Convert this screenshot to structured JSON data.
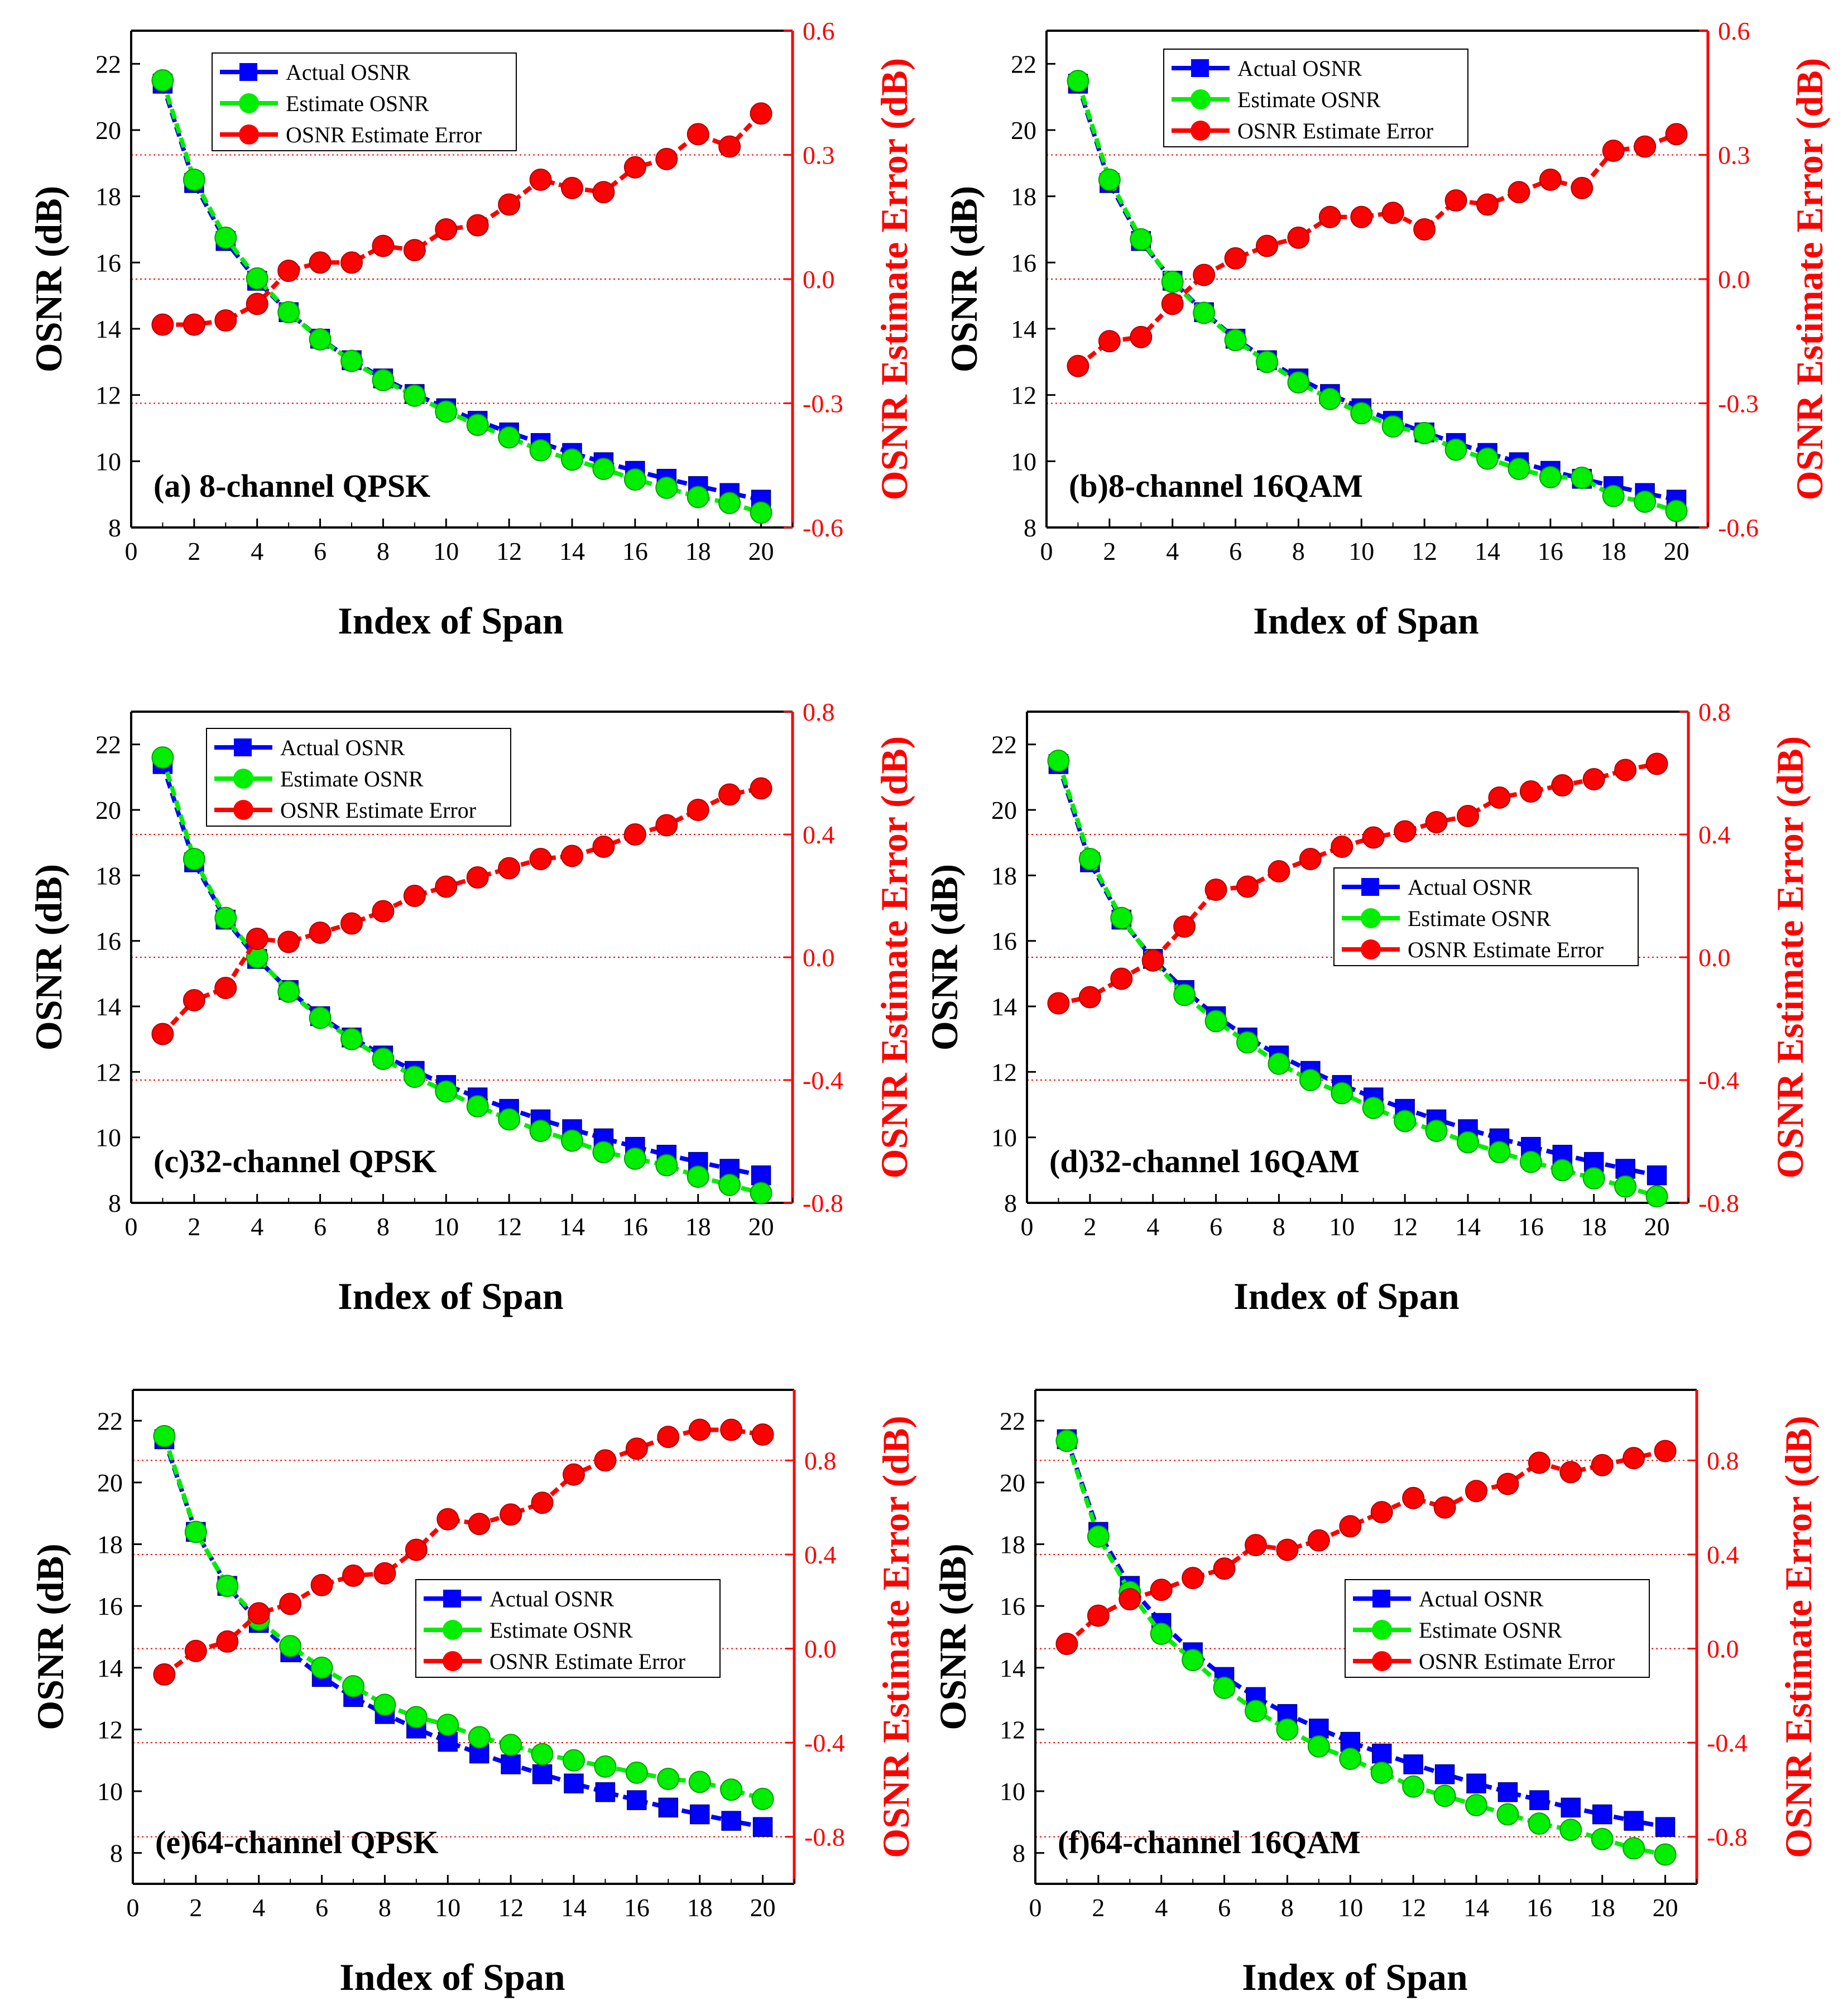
{
  "chart_data": [
    {
      "type": "line",
      "panel_label": "(a) 8-channel QPSK",
      "xlabel": "Index of Span",
      "ylabel": "OSNR (dB)",
      "y2label": "OSNR Estimate Error (dB)",
      "xlim": [
        0,
        21
      ],
      "ylim": [
        8,
        23
      ],
      "y2lim": [
        -0.6,
        0.6
      ],
      "xticks": [
        "0",
        "2",
        "4",
        "6",
        "8",
        "10",
        "12",
        "14",
        "16",
        "18",
        "20"
      ],
      "yticks": [
        "8",
        "10",
        "12",
        "14",
        "16",
        "18",
        "20",
        "22"
      ],
      "y2ticks": [
        "-0.6",
        "-0.3",
        "0.0",
        "0.3",
        "0.6"
      ],
      "gridlines_y2": [
        -0.3,
        0.0,
        0.3
      ],
      "legend_position": "top-left",
      "x": [
        1,
        2,
        3,
        4,
        5,
        6,
        7,
        8,
        9,
        10,
        11,
        12,
        13,
        14,
        15,
        16,
        17,
        18,
        19,
        20
      ],
      "series": [
        {
          "name": "Actual OSNR",
          "axis": "left",
          "color": "#0000ff",
          "marker": "square",
          "values": [
            21.4,
            18.4,
            16.65,
            15.45,
            14.5,
            13.7,
            13.05,
            12.5,
            12.03,
            11.6,
            11.22,
            10.87,
            10.55,
            10.25,
            9.97,
            9.71,
            9.47,
            9.25,
            9.04,
            8.84
          ]
        },
        {
          "name": "Estimate OSNR",
          "axis": "left",
          "color": "#00ee00",
          "marker": "circle",
          "values": [
            21.5,
            18.5,
            16.75,
            15.52,
            14.5,
            13.68,
            13.03,
            12.45,
            11.98,
            11.5,
            11.1,
            10.72,
            10.33,
            10.05,
            9.77,
            9.45,
            9.2,
            8.92,
            8.74,
            8.45
          ]
        },
        {
          "name": "OSNR Estimate Error",
          "axis": "right",
          "color": "#ff0000",
          "marker": "circle",
          "values": [
            -0.11,
            -0.11,
            -0.1,
            -0.06,
            0.02,
            0.04,
            0.04,
            0.08,
            0.07,
            0.12,
            0.13,
            0.18,
            0.24,
            0.22,
            0.21,
            0.27,
            0.29,
            0.35,
            0.32,
            0.4
          ]
        }
      ]
    },
    {
      "type": "line",
      "panel_label": "(b)8-channel 16QAM",
      "xlabel": "Index of Span",
      "ylabel": "OSNR (dB)",
      "y2label": "OSNR Estimate Error (dB)",
      "xlim": [
        0,
        21
      ],
      "ylim": [
        8,
        23
      ],
      "y2lim": [
        -0.6,
        0.6
      ],
      "xticks": [
        "0",
        "2",
        "4",
        "6",
        "8",
        "10",
        "12",
        "14",
        "16",
        "18",
        "20"
      ],
      "yticks": [
        "8",
        "10",
        "12",
        "14",
        "16",
        "18",
        "20",
        "22"
      ],
      "y2ticks": [
        "-0.6",
        "-0.3",
        "0.0",
        "0.3",
        "0.6"
      ],
      "gridlines_y2": [
        -0.3,
        0.0,
        0.3
      ],
      "legend_position": "top-left",
      "x": [
        1,
        2,
        3,
        4,
        5,
        6,
        7,
        8,
        9,
        10,
        11,
        12,
        13,
        14,
        15,
        16,
        17,
        18,
        19,
        20
      ],
      "series": [
        {
          "name": "Actual OSNR",
          "axis": "left",
          "color": "#0000ff",
          "marker": "square",
          "values": [
            21.4,
            18.4,
            16.65,
            15.45,
            14.5,
            13.7,
            13.05,
            12.5,
            12.03,
            11.6,
            11.22,
            10.87,
            10.55,
            10.25,
            9.97,
            9.71,
            9.47,
            9.25,
            9.04,
            8.84
          ]
        },
        {
          "name": "Estimate OSNR",
          "axis": "left",
          "color": "#00ee00",
          "marker": "circle",
          "values": [
            21.48,
            18.5,
            16.7,
            15.42,
            14.48,
            13.66,
            13.0,
            12.38,
            11.88,
            11.45,
            11.05,
            10.85,
            10.35,
            10.08,
            9.77,
            9.52,
            9.5,
            8.95,
            8.78,
            8.5
          ]
        },
        {
          "name": "OSNR Estimate Error",
          "axis": "right",
          "color": "#ff0000",
          "marker": "circle",
          "values": [
            -0.21,
            -0.15,
            -0.14,
            -0.06,
            0.01,
            0.05,
            0.08,
            0.1,
            0.15,
            0.15,
            0.16,
            0.12,
            0.19,
            0.18,
            0.21,
            0.24,
            0.22,
            0.31,
            0.32,
            0.35
          ]
        }
      ]
    },
    {
      "type": "line",
      "panel_label": "(c)32-channel QPSK",
      "xlabel": "Index of Span",
      "ylabel": "OSNR (dB)",
      "y2label": "OSNR Estimate Error (dB)",
      "xlim": [
        0,
        21
      ],
      "ylim": [
        8,
        23
      ],
      "y2lim": [
        -0.8,
        0.8
      ],
      "xticks": [
        "0",
        "2",
        "4",
        "6",
        "8",
        "10",
        "12",
        "14",
        "16",
        "18",
        "20"
      ],
      "yticks": [
        "8",
        "10",
        "12",
        "14",
        "16",
        "18",
        "20",
        "22"
      ],
      "y2ticks": [
        "-0.8",
        "-0.4",
        "0.0",
        "0.4",
        "0.8"
      ],
      "gridlines_y2": [
        -0.4,
        0.0,
        0.4
      ],
      "legend_position": "top-left",
      "x": [
        1,
        2,
        3,
        4,
        5,
        6,
        7,
        8,
        9,
        10,
        11,
        12,
        13,
        14,
        15,
        16,
        17,
        18,
        19,
        20
      ],
      "series": [
        {
          "name": "Actual OSNR",
          "axis": "left",
          "color": "#0000ff",
          "marker": "square",
          "values": [
            21.4,
            18.4,
            16.65,
            15.45,
            14.5,
            13.7,
            13.05,
            12.5,
            12.03,
            11.6,
            11.22,
            10.87,
            10.55,
            10.25,
            9.97,
            9.71,
            9.47,
            9.25,
            9.04,
            8.84
          ]
        },
        {
          "name": "Estimate OSNR",
          "axis": "left",
          "color": "#00ee00",
          "marker": "circle",
          "values": [
            21.6,
            18.5,
            16.7,
            15.5,
            14.45,
            13.65,
            13.0,
            12.4,
            11.85,
            11.4,
            10.95,
            10.55,
            10.2,
            9.9,
            9.55,
            9.35,
            9.15,
            8.8,
            8.55,
            8.3
          ]
        },
        {
          "name": "OSNR Estimate Error",
          "axis": "right",
          "color": "#ff0000",
          "marker": "circle",
          "values": [
            -0.25,
            -0.14,
            -0.1,
            0.06,
            0.05,
            0.08,
            0.11,
            0.15,
            0.2,
            0.23,
            0.26,
            0.29,
            0.32,
            0.33,
            0.36,
            0.4,
            0.43,
            0.48,
            0.53,
            0.55
          ]
        }
      ]
    },
    {
      "type": "line",
      "panel_label": "(d)32-channel 16QAM",
      "xlabel": "Index of Span",
      "ylabel": "OSNR (dB)",
      "y2label": "OSNR Estimate Error (dB)",
      "xlim": [
        0,
        21
      ],
      "ylim": [
        8,
        23
      ],
      "y2lim": [
        -0.8,
        0.8
      ],
      "xticks": [
        "0",
        "2",
        "4",
        "6",
        "8",
        "10",
        "12",
        "14",
        "16",
        "18",
        "20"
      ],
      "yticks": [
        "8",
        "10",
        "12",
        "14",
        "16",
        "18",
        "20",
        "22"
      ],
      "y2ticks": [
        "-0.8",
        "-0.4",
        "0.0",
        "0.4",
        "0.8"
      ],
      "gridlines_y2": [
        -0.4,
        0.0,
        0.4
      ],
      "legend_position": "center-right",
      "x": [
        1,
        2,
        3,
        4,
        5,
        6,
        7,
        8,
        9,
        10,
        11,
        12,
        13,
        14,
        15,
        16,
        17,
        18,
        19,
        20
      ],
      "series": [
        {
          "name": "Actual OSNR",
          "axis": "left",
          "color": "#0000ff",
          "marker": "square",
          "values": [
            21.4,
            18.4,
            16.65,
            15.45,
            14.5,
            13.7,
            13.05,
            12.5,
            12.03,
            11.6,
            11.22,
            10.87,
            10.55,
            10.25,
            9.97,
            9.71,
            9.47,
            9.25,
            9.04,
            8.84
          ]
        },
        {
          "name": "Estimate OSNR",
          "axis": "left",
          "color": "#00ee00",
          "marker": "circle",
          "values": [
            21.5,
            18.5,
            16.7,
            15.4,
            14.35,
            13.55,
            12.9,
            12.25,
            11.75,
            11.35,
            10.9,
            10.5,
            10.2,
            9.85,
            9.55,
            9.25,
            9.0,
            8.75,
            8.5,
            8.2
          ]
        },
        {
          "name": "OSNR Estimate Error",
          "axis": "right",
          "color": "#ff0000",
          "marker": "circle",
          "values": [
            -0.15,
            -0.13,
            -0.07,
            -0.01,
            0.1,
            0.22,
            0.23,
            0.28,
            0.32,
            0.36,
            0.39,
            0.41,
            0.44,
            0.46,
            0.52,
            0.54,
            0.56,
            0.58,
            0.61,
            0.63
          ]
        }
      ]
    },
    {
      "type": "line",
      "panel_label": "(e)64-channel QPSK",
      "xlabel": "Index of Span",
      "ylabel": "OSNR (dB)",
      "y2label": "OSNR Estimate Error (dB)",
      "xlim": [
        0,
        21
      ],
      "ylim": [
        7,
        23
      ],
      "y2lim": [
        -1.0,
        1.1
      ],
      "xticks": [
        "0",
        "2",
        "4",
        "6",
        "8",
        "10",
        "12",
        "14",
        "16",
        "18",
        "20"
      ],
      "yticks": [
        "8",
        "10",
        "12",
        "14",
        "16",
        "18",
        "20",
        "22"
      ],
      "y2ticks": [
        "-0.8",
        "-0.4",
        "0.0",
        "0.4",
        "0.8"
      ],
      "gridlines_y2": [
        -0.8,
        -0.4,
        0.0,
        0.4,
        0.8
      ],
      "legend_position": "center-right",
      "x": [
        1,
        2,
        3,
        4,
        5,
        6,
        7,
        8,
        9,
        10,
        11,
        12,
        13,
        14,
        15,
        16,
        17,
        18,
        19,
        20
      ],
      "series": [
        {
          "name": "Actual OSNR",
          "axis": "left",
          "color": "#0000ff",
          "marker": "square",
          "values": [
            21.4,
            18.4,
            16.65,
            15.45,
            14.5,
            13.7,
            13.05,
            12.5,
            12.03,
            11.6,
            11.22,
            10.87,
            10.55,
            10.25,
            9.97,
            9.71,
            9.47,
            9.25,
            9.04,
            8.84
          ]
        },
        {
          "name": "Estimate OSNR",
          "axis": "left",
          "color": "#00ee00",
          "marker": "circle",
          "values": [
            21.5,
            18.4,
            16.65,
            15.55,
            14.7,
            14.0,
            13.4,
            12.8,
            12.4,
            12.15,
            11.75,
            11.5,
            11.2,
            11.0,
            10.8,
            10.6,
            10.4,
            10.3,
            10.05,
            9.75
          ]
        },
        {
          "name": "OSNR Estimate Error",
          "axis": "right",
          "color": "#ff0000",
          "marker": "circle",
          "values": [
            -0.11,
            -0.01,
            0.03,
            0.15,
            0.19,
            0.27,
            0.31,
            0.32,
            0.42,
            0.55,
            0.53,
            0.57,
            0.62,
            0.74,
            0.8,
            0.85,
            0.9,
            0.93,
            0.93,
            0.91
          ]
        }
      ]
    },
    {
      "type": "line",
      "panel_label": "(f)64-channel 16QAM",
      "xlabel": "Index of Span",
      "ylabel": "OSNR (dB)",
      "y2label": "OSNR Estimate Error (dB)",
      "xlim": [
        0,
        21
      ],
      "ylim": [
        7,
        23
      ],
      "y2lim": [
        -1.0,
        1.1
      ],
      "xticks": [
        "0",
        "2",
        "4",
        "6",
        "8",
        "10",
        "12",
        "14",
        "16",
        "18",
        "20"
      ],
      "yticks": [
        "8",
        "10",
        "12",
        "14",
        "16",
        "18",
        "20",
        "22"
      ],
      "y2ticks": [
        "-0.8",
        "-0.4",
        "0.0",
        "0.4",
        "0.8"
      ],
      "gridlines_y2": [
        -0.8,
        -0.4,
        0.0,
        0.4,
        0.8
      ],
      "legend_position": "center-right",
      "x": [
        1,
        2,
        3,
        4,
        5,
        6,
        7,
        8,
        9,
        10,
        11,
        12,
        13,
        14,
        15,
        16,
        17,
        18,
        19,
        20
      ],
      "series": [
        {
          "name": "Actual OSNR",
          "axis": "left",
          "color": "#0000ff",
          "marker": "square",
          "values": [
            21.4,
            18.4,
            16.65,
            15.45,
            14.5,
            13.7,
            13.05,
            12.5,
            12.03,
            11.6,
            11.22,
            10.87,
            10.55,
            10.25,
            9.97,
            9.71,
            9.47,
            9.25,
            9.04,
            8.84
          ]
        },
        {
          "name": "Estimate OSNR",
          "axis": "left",
          "color": "#00ee00",
          "marker": "circle",
          "values": [
            21.35,
            18.25,
            16.45,
            15.1,
            14.25,
            13.35,
            12.6,
            12.0,
            11.45,
            11.05,
            10.6,
            10.15,
            9.85,
            9.55,
            9.25,
            8.95,
            8.75,
            8.45,
            8.15,
            7.95
          ]
        },
        {
          "name": "OSNR Estimate Error",
          "axis": "right",
          "color": "#ff0000",
          "marker": "circle",
          "values": [
            0.02,
            0.14,
            0.21,
            0.25,
            0.3,
            0.34,
            0.44,
            0.42,
            0.46,
            0.52,
            0.58,
            0.64,
            0.6,
            0.67,
            0.7,
            0.79,
            0.75,
            0.78,
            0.81,
            0.84
          ]
        }
      ]
    }
  ]
}
